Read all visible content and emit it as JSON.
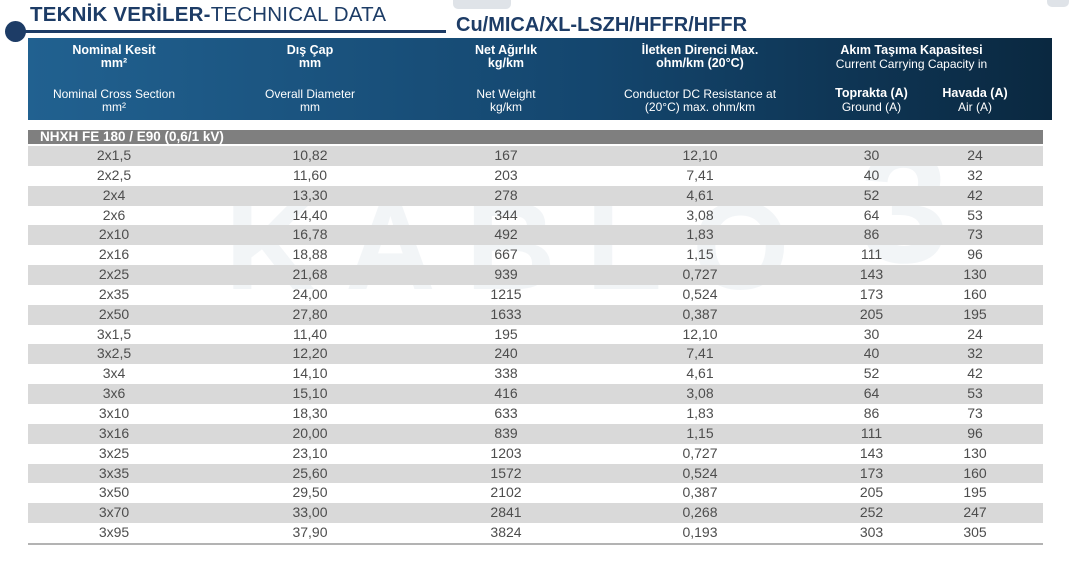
{
  "header": {
    "title_bold": "TEKNİK VERİLER-",
    "title_regular": "TECHNICAL DATA",
    "subtitle": "Cu/MICA/XL-LSZH/HFFR/HFFR"
  },
  "colors": {
    "navy_title": "#1d3c66",
    "header_band_left": "#216190",
    "header_band_right": "#0a2840",
    "section_bar": "#7f7f7f",
    "row_stripe": "#d9d9d9",
    "row_text": "#4d4d4d"
  },
  "watermark": {
    "word": "KABLO",
    "digit": "3"
  },
  "table": {
    "columns": [
      {
        "tr": "Nominal Kesit",
        "tr_unit": "mm²",
        "en": "Nominal Cross Section",
        "en_unit": "mm²"
      },
      {
        "tr": "Dış Çap",
        "tr_unit": "mm",
        "en": "Overall Diameter",
        "en_unit": "mm"
      },
      {
        "tr": "Net Ağırlık",
        "tr_unit": "kg/km",
        "en": "Net Weight",
        "en_unit": "kg/km"
      },
      {
        "tr": "İletken Direnci Max.",
        "tr_unit": "ohm/km (20°C)",
        "en": "Conductor DC Resistance at",
        "en_unit": "(20°C) max. ohm/km"
      }
    ],
    "capacity_group": {
      "tr": "Akım Taşıma Kapasitesi",
      "en": "Current Carrying Capacity in",
      "sub": [
        {
          "tr": "Toprakta (A)",
          "en": "Ground (A)"
        },
        {
          "tr": "Havada (A)",
          "en": "Air (A)"
        }
      ]
    },
    "section_title": "NHXH FE 180 / E90 (0,6/1 kV)",
    "rows": [
      [
        "2x1,5",
        "10,82",
        "167",
        "12,10",
        "30",
        "24"
      ],
      [
        "2x2,5",
        "11,60",
        "203",
        "7,41",
        "40",
        "32"
      ],
      [
        "2x4",
        "13,30",
        "278",
        "4,61",
        "52",
        "42"
      ],
      [
        "2x6",
        "14,40",
        "344",
        "3,08",
        "64",
        "53"
      ],
      [
        "2x10",
        "16,78",
        "492",
        "1,83",
        "86",
        "73"
      ],
      [
        "2x16",
        "18,88",
        "667",
        "1,15",
        "111",
        "96"
      ],
      [
        "2x25",
        "21,68",
        "939",
        "0,727",
        "143",
        "130"
      ],
      [
        "2x35",
        "24,00",
        "1215",
        "0,524",
        "173",
        "160"
      ],
      [
        "2x50",
        "27,80",
        "1633",
        "0,387",
        "205",
        "195"
      ],
      [
        "3x1,5",
        "11,40",
        "195",
        "12,10",
        "30",
        "24"
      ],
      [
        "3x2,5",
        "12,20",
        "240",
        "7,41",
        "40",
        "32"
      ],
      [
        "3x4",
        "14,10",
        "338",
        "4,61",
        "52",
        "42"
      ],
      [
        "3x6",
        "15,10",
        "416",
        "3,08",
        "64",
        "53"
      ],
      [
        "3x10",
        "18,30",
        "633",
        "1,83",
        "86",
        "73"
      ],
      [
        "3x16",
        "20,00",
        "839",
        "1,15",
        "111",
        "96"
      ],
      [
        "3x25",
        "23,10",
        "1203",
        "0,727",
        "143",
        "130"
      ],
      [
        "3x35",
        "25,60",
        "1572",
        "0,524",
        "173",
        "160"
      ],
      [
        "3x50",
        "29,50",
        "2102",
        "0,387",
        "205",
        "195"
      ],
      [
        "3x70",
        "33,00",
        "2841",
        "0,268",
        "252",
        "247"
      ],
      [
        "3x95",
        "37,90",
        "3824",
        "0,193",
        "303",
        "305"
      ]
    ]
  }
}
